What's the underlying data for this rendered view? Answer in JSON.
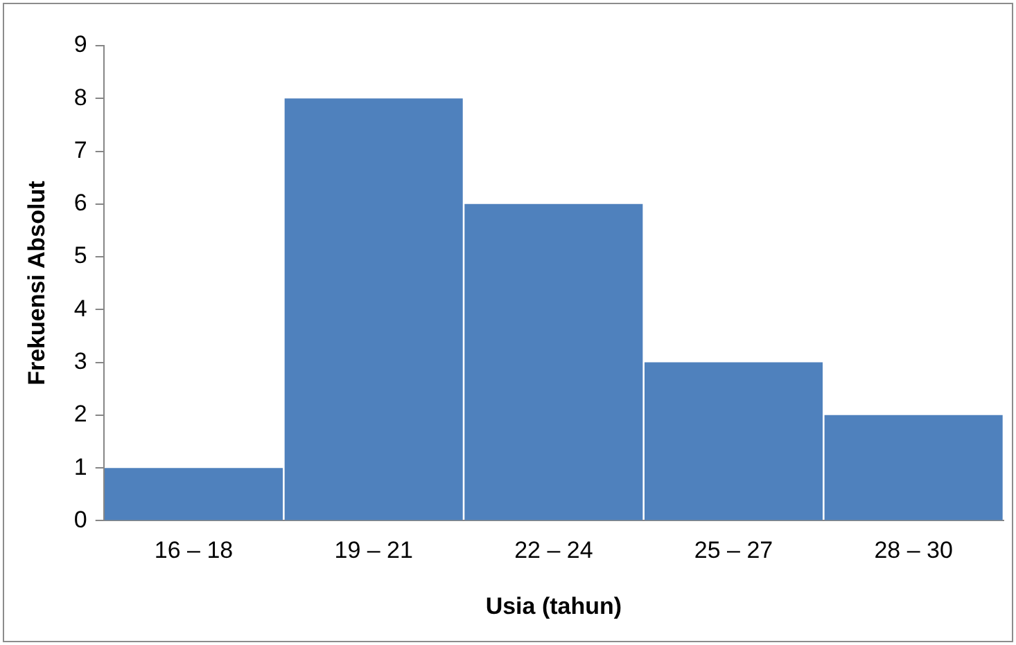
{
  "chart_data": {
    "type": "bar",
    "xlabel": "Usia (tahun)",
    "ylabel": "Frekuensi Absolut",
    "categories": [
      "16 – 18",
      "19 – 21",
      "22 – 24",
      "25 – 27",
      "28 – 30"
    ],
    "values": [
      1,
      8,
      6,
      3,
      2
    ],
    "color": "#4f81bd",
    "ylim": [
      0,
      9
    ],
    "yticks": [
      0,
      1,
      2,
      3,
      4,
      5,
      6,
      7,
      8,
      9
    ],
    "grid": false,
    "legend": false
  }
}
